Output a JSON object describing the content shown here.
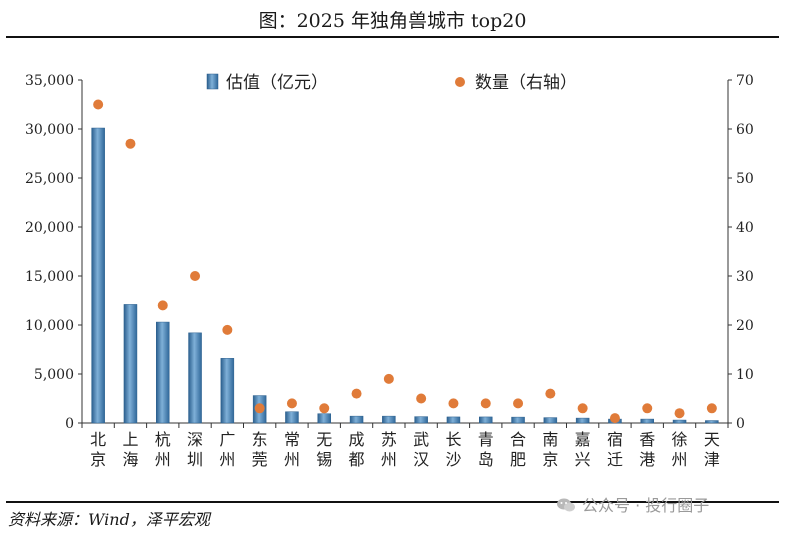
{
  "title": "图：2025 年独角兽城市 top20",
  "source": "资料来源：Wind，泽平宏观",
  "watermark": "公众号 · 投行圈子",
  "chart_data": {
    "type": "bar",
    "categories": [
      "北京",
      "上海",
      "杭州",
      "深圳",
      "广州",
      "东莞",
      "常州",
      "无锡",
      "成都",
      "苏州",
      "武汉",
      "长沙",
      "青岛",
      "合肥",
      "南京",
      "嘉兴",
      "宿迁",
      "香港",
      "徐州",
      "天津"
    ],
    "series": [
      {
        "name": "估值（亿元）",
        "type": "bar",
        "axis": "left",
        "color": "#4a86b8",
        "values": [
          30100,
          12100,
          10300,
          9200,
          6600,
          2800,
          1150,
          950,
          700,
          700,
          650,
          620,
          620,
          600,
          550,
          500,
          400,
          400,
          300,
          250
        ]
      },
      {
        "name": "数量（右轴）",
        "type": "scatter",
        "axis": "right",
        "color": "#e07b39",
        "values": [
          65,
          57,
          24,
          30,
          19,
          3,
          4,
          3,
          6,
          9,
          5,
          4,
          4,
          4,
          6,
          3,
          1,
          3,
          2,
          3
        ]
      }
    ],
    "y_left": {
      "min": 0,
      "max": 35000,
      "ticks": [
        "0",
        "5,000",
        "10,000",
        "15,000",
        "20,000",
        "25,000",
        "30,000",
        "35,000"
      ]
    },
    "y_right": {
      "min": 0,
      "max": 70,
      "ticks": [
        "0",
        "10",
        "20",
        "30",
        "40",
        "50",
        "60",
        "70"
      ]
    },
    "legend_position": "top-center",
    "grid": false
  }
}
